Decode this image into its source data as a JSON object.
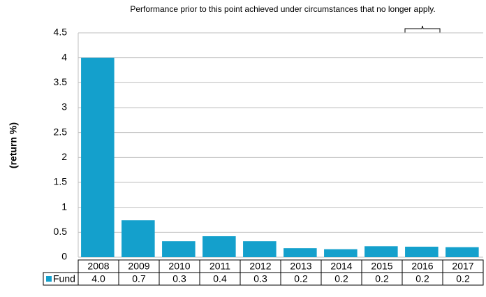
{
  "chart_data": {
    "type": "bar",
    "annotation": "Performance prior to this point achieved under circumstances that no longer apply.",
    "y_label": "(return %)",
    "categories": [
      "2008",
      "2009",
      "2010",
      "2011",
      "2012",
      "2013",
      "2014",
      "2015",
      "2016",
      "2017"
    ],
    "series": [
      {
        "name": "Fund",
        "color": "#14a0cc",
        "values": [
          4.0,
          0.74,
          0.32,
          0.42,
          0.32,
          0.18,
          0.16,
          0.22,
          0.21,
          0.2
        ],
        "value_labels": [
          "4.0",
          "0.7",
          "0.3",
          "0.4",
          "0.3",
          "0.2",
          "0.2",
          "0.2",
          "0.2",
          "0.2"
        ]
      }
    ],
    "ylim": [
      0,
      4.5
    ],
    "yticks": [
      0,
      0.5,
      1,
      1.5,
      2,
      2.5,
      3,
      3.5,
      4,
      4.5
    ],
    "grid": true
  }
}
